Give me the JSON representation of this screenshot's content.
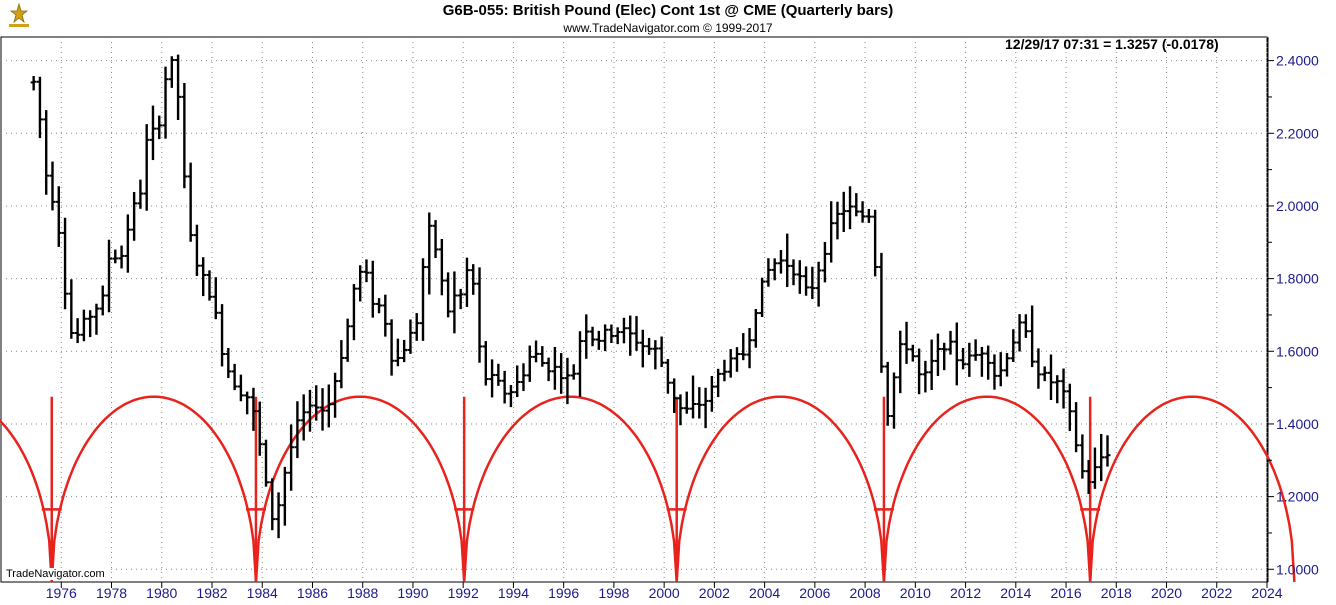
{
  "header": {
    "title": "G6B-055:  British Pound (Elec) Cont 1st @ CME  (Quarterly bars)",
    "subtitle": "www.TradeNavigator.com © 1999-2017",
    "readout": "12/29/17 07:31 = 1.3257 (-0.0178)",
    "watermark": "TradeNavigator.com"
  },
  "colors": {
    "bars": "#000000",
    "cycle": "#e8231d",
    "axis_text": "#1a1a8c",
    "grid": "#888888",
    "logo": "#d4a017"
  },
  "chart_data": {
    "type": "ohlc",
    "title": "G6B-055:  British Pound (Elec) Cont 1st @ CME  (Quarterly bars)",
    "xlim": [
      1973.6,
      2024.0
    ],
    "ylim": [
      0.965,
      2.465
    ],
    "y_ticks": [
      1.0,
      1.2,
      1.4,
      1.6,
      1.8,
      2.0,
      2.2,
      2.4
    ],
    "y_tick_labels": [
      "1.0000",
      "1.2000",
      "1.4000",
      "1.6000",
      "1.8000",
      "2.0000",
      "2.2000",
      "2.4000"
    ],
    "x_ticks": [
      1976,
      1978,
      1980,
      1982,
      1984,
      1986,
      1988,
      1990,
      1992,
      1994,
      1996,
      1998,
      2000,
      2002,
      2004,
      2006,
      2008,
      2010,
      2012,
      2014,
      2016,
      2018,
      2020,
      2022,
      2024
    ],
    "x_tick_labels": [
      "1976",
      "1978",
      "1980",
      "1982",
      "1984",
      "1986",
      "1988",
      "1990",
      "1992",
      "1994",
      "1996",
      "1998",
      "2000",
      "2002",
      "2004",
      "2006",
      "2008",
      "2010",
      "2012",
      "2014",
      "2016",
      "2018",
      "2020",
      "2022",
      "2024"
    ],
    "grid": "dotted",
    "bar_anchors": [
      [
        1975.0,
        2.34
      ],
      [
        1975.25,
        2.17
      ],
      [
        1975.5,
        2.03
      ],
      [
        1975.75,
        2.02
      ],
      [
        1976.0,
        1.88
      ],
      [
        1976.25,
        1.7
      ],
      [
        1976.5,
        1.62
      ],
      [
        1976.75,
        1.66
      ],
      [
        1977.25,
        1.71
      ],
      [
        1977.75,
        1.75
      ],
      [
        1978.0,
        1.93
      ],
      [
        1978.25,
        1.82
      ],
      [
        1978.75,
        1.97
      ],
      [
        1979.25,
        2.06
      ],
      [
        1979.5,
        2.25
      ],
      [
        1979.75,
        2.17
      ],
      [
        1980.0,
        2.28
      ],
      [
        1980.25,
        2.4
      ],
      [
        1980.5,
        2.38
      ],
      [
        1980.75,
        2.25
      ],
      [
        1981.0,
        1.95
      ],
      [
        1981.5,
        1.82
      ],
      [
        1982.0,
        1.75
      ],
      [
        1982.5,
        1.57
      ],
      [
        1983.0,
        1.5
      ],
      [
        1983.5,
        1.47
      ],
      [
        1983.75,
        1.4
      ],
      [
        1984.0,
        1.3
      ],
      [
        1984.25,
        1.18
      ],
      [
        1984.5,
        1.12
      ],
      [
        1984.75,
        1.22
      ],
      [
        1985.0,
        1.3
      ],
      [
        1985.5,
        1.42
      ],
      [
        1986.0,
        1.44
      ],
      [
        1986.25,
        1.47
      ],
      [
        1986.5,
        1.42
      ],
      [
        1986.75,
        1.48
      ],
      [
        1987.25,
        1.62
      ],
      [
        1987.5,
        1.7
      ],
      [
        1987.75,
        1.82
      ],
      [
        1988.25,
        1.8
      ],
      [
        1988.5,
        1.7
      ],
      [
        1988.75,
        1.74
      ],
      [
        1989.25,
        1.55
      ],
      [
        1989.5,
        1.6
      ],
      [
        1989.75,
        1.62
      ],
      [
        1990.25,
        1.7
      ],
      [
        1990.5,
        1.92
      ],
      [
        1990.75,
        1.94
      ],
      [
        1991.25,
        1.75
      ],
      [
        1991.5,
        1.69
      ],
      [
        1991.75,
        1.79
      ],
      [
        1992.0,
        1.73
      ],
      [
        1992.25,
        1.88
      ],
      [
        1992.5,
        1.72
      ],
      [
        1992.75,
        1.53
      ],
      [
        1993.25,
        1.52
      ],
      [
        1993.75,
        1.48
      ],
      [
        1994.25,
        1.52
      ],
      [
        1994.75,
        1.6
      ],
      [
        1995.25,
        1.56
      ],
      [
        1995.75,
        1.55
      ],
      [
        1996.25,
        1.52
      ],
      [
        1996.5,
        1.56
      ],
      [
        1996.75,
        1.68
      ],
      [
        1997.25,
        1.63
      ],
      [
        1997.75,
        1.65
      ],
      [
        1998.25,
        1.66
      ],
      [
        1998.75,
        1.64
      ],
      [
        1999.25,
        1.61
      ],
      [
        1999.75,
        1.6
      ],
      [
        2000.25,
        1.5
      ],
      [
        2000.5,
        1.46
      ],
      [
        2000.75,
        1.43
      ],
      [
        2001.0,
        1.44
      ],
      [
        2001.25,
        1.45
      ],
      [
        2001.75,
        1.47
      ],
      [
        2002.25,
        1.55
      ],
      [
        2002.75,
        1.57
      ],
      [
        2003.25,
        1.6
      ],
      [
        2003.75,
        1.75
      ],
      [
        2004.25,
        1.84
      ],
      [
        2004.75,
        1.85
      ],
      [
        2005.25,
        1.82
      ],
      [
        2005.75,
        1.75
      ],
      [
        2006.25,
        1.85
      ],
      [
        2006.75,
        1.96
      ],
      [
        2007.25,
        2.0
      ],
      [
        2007.75,
        1.97
      ],
      [
        2008.25,
        1.98
      ],
      [
        2008.5,
        1.75
      ],
      [
        2008.75,
        1.45
      ],
      [
        2009.0,
        1.42
      ],
      [
        2009.25,
        1.6
      ],
      [
        2009.75,
        1.62
      ],
      [
        2010.25,
        1.51
      ],
      [
        2010.75,
        1.58
      ],
      [
        2011.25,
        1.63
      ],
      [
        2011.75,
        1.57
      ],
      [
        2012.25,
        1.58
      ],
      [
        2012.75,
        1.61
      ],
      [
        2013.25,
        1.52
      ],
      [
        2013.75,
        1.61
      ],
      [
        2014.25,
        1.68
      ],
      [
        2014.5,
        1.62
      ],
      [
        2014.75,
        1.56
      ],
      [
        2015.25,
        1.52
      ],
      [
        2015.75,
        1.51
      ],
      [
        2016.25,
        1.4
      ],
      [
        2016.5,
        1.31
      ],
      [
        2016.75,
        1.24
      ],
      [
        2017.0,
        1.25
      ],
      [
        2017.25,
        1.29
      ],
      [
        2017.5,
        1.32
      ],
      [
        2017.75,
        1.3257
      ]
    ],
    "cycle": {
      "lows": [
        1975.62,
        1983.75,
        1992.04,
        2000.5,
        2008.75,
        2016.96
      ],
      "crest_price": 1.475,
      "trough_price": 0.965,
      "marker_price": 1.165
    }
  }
}
